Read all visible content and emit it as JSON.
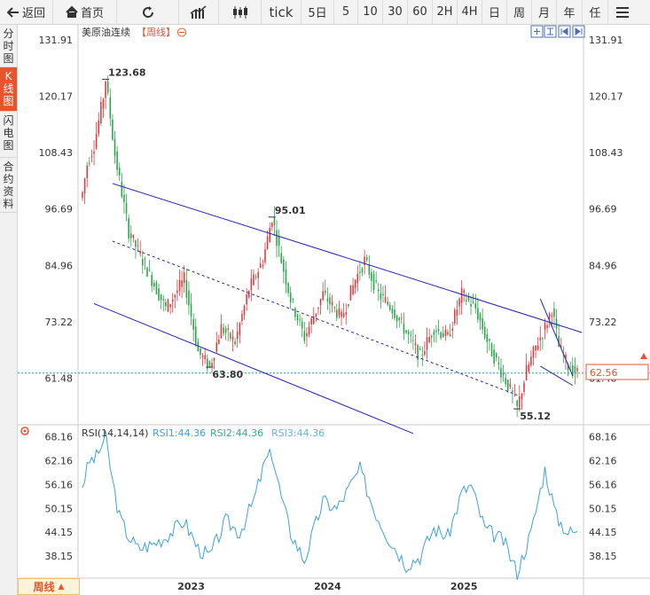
{
  "toolbar": {
    "back_label": "返回",
    "home_label": "首页",
    "periods": [
      "tick",
      "5日",
      "5",
      "10",
      "30",
      "60",
      "2H",
      "4H",
      "日",
      "周",
      "月",
      "年",
      "任"
    ]
  },
  "sidebar": {
    "items": [
      {
        "label": "分时图",
        "active": false
      },
      {
        "label": "K线图",
        "active": true
      },
      {
        "label": "闪电图",
        "active": false
      },
      {
        "label": "合约资料",
        "active": false
      }
    ]
  },
  "chart_title": {
    "name": "美原油连续",
    "period_tag": "【周线】"
  },
  "current_price": "62.56",
  "period_selector": "周线",
  "colors": {
    "up": "#e2393f",
    "down": "#2aa34a",
    "channel": "#2222bb",
    "rsi": "#3aa3dc",
    "accent": "#e8542c"
  },
  "chart_data": [
    {
      "type": "candlestick",
      "y_ticks": [
        "131.91",
        "120.17",
        "108.43",
        "96.69",
        "84.96",
        "73.22",
        "61.48"
      ],
      "ylim": [
        52.0,
        135.0
      ],
      "annotations": [
        {
          "label": "123.68",
          "value": 123.68,
          "kind": "high"
        },
        {
          "label": "95.01",
          "value": 95.01,
          "kind": "high"
        },
        {
          "label": "63.80",
          "value": 63.8,
          "kind": "low"
        },
        {
          "label": "55.12",
          "value": 55.12,
          "kind": "low"
        }
      ],
      "x_labels": [
        "2023",
        "2024",
        "2025"
      ],
      "anchors": [
        {
          "i": 0,
          "v": 100
        },
        {
          "i": 2,
          "v": 106
        },
        {
          "i": 5,
          "v": 110
        },
        {
          "i": 9,
          "v": 120
        },
        {
          "i": 10,
          "v": 123.68
        },
        {
          "i": 14,
          "v": 108
        },
        {
          "i": 20,
          "v": 92
        },
        {
          "i": 28,
          "v": 84
        },
        {
          "i": 36,
          "v": 76
        },
        {
          "i": 44,
          "v": 82
        },
        {
          "i": 50,
          "v": 67
        },
        {
          "i": 55,
          "v": 63.8
        },
        {
          "i": 60,
          "v": 72
        },
        {
          "i": 66,
          "v": 69
        },
        {
          "i": 72,
          "v": 80
        },
        {
          "i": 78,
          "v": 86
        },
        {
          "i": 82,
          "v": 95.01
        },
        {
          "i": 86,
          "v": 86
        },
        {
          "i": 90,
          "v": 78
        },
        {
          "i": 96,
          "v": 70
        },
        {
          "i": 104,
          "v": 79
        },
        {
          "i": 112,
          "v": 74
        },
        {
          "i": 118,
          "v": 82
        },
        {
          "i": 122,
          "v": 86
        },
        {
          "i": 128,
          "v": 79
        },
        {
          "i": 134,
          "v": 76
        },
        {
          "i": 140,
          "v": 71
        },
        {
          "i": 146,
          "v": 66
        },
        {
          "i": 152,
          "v": 72
        },
        {
          "i": 158,
          "v": 70
        },
        {
          "i": 164,
          "v": 79
        },
        {
          "i": 170,
          "v": 76
        },
        {
          "i": 176,
          "v": 68
        },
        {
          "i": 182,
          "v": 62
        },
        {
          "i": 186,
          "v": 58
        },
        {
          "i": 188,
          "v": 55.12
        },
        {
          "i": 192,
          "v": 63
        },
        {
          "i": 196,
          "v": 68
        },
        {
          "i": 200,
          "v": 72
        },
        {
          "i": 203,
          "v": 76
        },
        {
          "i": 206,
          "v": 68
        },
        {
          "i": 210,
          "v": 64
        },
        {
          "i": 214,
          "v": 62.56
        }
      ],
      "channel_lines": [
        {
          "style": "solid",
          "from": [
            13,
            102
          ],
          "to": [
            216,
            71
          ]
        },
        {
          "style": "dashed",
          "from": [
            13,
            90
          ],
          "to": [
            188,
            58
          ]
        },
        {
          "style": "solid",
          "from": [
            5,
            77
          ],
          "to": [
            143,
            50
          ]
        },
        {
          "style": "solid",
          "from": [
            198,
            78
          ],
          "to": [
            212,
            62
          ]
        },
        {
          "style": "solid",
          "from": [
            198,
            64
          ],
          "to": [
            212,
            60
          ]
        }
      ],
      "reference_line": 62.56
    },
    {
      "type": "line",
      "legend": {
        "title": "RSI(14,14,14)",
        "rsi1": "RSI1:44.36",
        "rsi2": "RSI2:44.36",
        "rsi3": "RSI3:44.36"
      },
      "y_ticks": [
        "68.16",
        "62.16",
        "56.16",
        "50.15",
        "44.15",
        "38.15"
      ],
      "ylim": [
        33.0,
        71.0
      ],
      "last_value": 44.36,
      "anchors": [
        {
          "i": 0,
          "v": 56
        },
        {
          "i": 3,
          "v": 62
        },
        {
          "i": 6,
          "v": 63
        },
        {
          "i": 9,
          "v": 67
        },
        {
          "i": 10,
          "v": 68
        },
        {
          "i": 13,
          "v": 57
        },
        {
          "i": 16,
          "v": 48
        },
        {
          "i": 20,
          "v": 43
        },
        {
          "i": 24,
          "v": 40
        },
        {
          "i": 30,
          "v": 41
        },
        {
          "i": 36,
          "v": 43
        },
        {
          "i": 44,
          "v": 47
        },
        {
          "i": 50,
          "v": 40
        },
        {
          "i": 55,
          "v": 38
        },
        {
          "i": 62,
          "v": 47
        },
        {
          "i": 68,
          "v": 44
        },
        {
          "i": 74,
          "v": 52
        },
        {
          "i": 79,
          "v": 62
        },
        {
          "i": 82,
          "v": 64
        },
        {
          "i": 86,
          "v": 53
        },
        {
          "i": 90,
          "v": 44
        },
        {
          "i": 96,
          "v": 37
        },
        {
          "i": 104,
          "v": 52
        },
        {
          "i": 110,
          "v": 50
        },
        {
          "i": 116,
          "v": 56
        },
        {
          "i": 120,
          "v": 60
        },
        {
          "i": 126,
          "v": 50
        },
        {
          "i": 132,
          "v": 43
        },
        {
          "i": 140,
          "v": 36
        },
        {
          "i": 146,
          "v": 38
        },
        {
          "i": 152,
          "v": 45
        },
        {
          "i": 158,
          "v": 43
        },
        {
          "i": 164,
          "v": 54
        },
        {
          "i": 168,
          "v": 56
        },
        {
          "i": 174,
          "v": 45
        },
        {
          "i": 182,
          "v": 42
        },
        {
          "i": 188,
          "v": 34
        },
        {
          "i": 194,
          "v": 44
        },
        {
          "i": 200,
          "v": 60
        },
        {
          "i": 205,
          "v": 48
        },
        {
          "i": 210,
          "v": 44
        },
        {
          "i": 214,
          "v": 44.36
        }
      ]
    }
  ]
}
